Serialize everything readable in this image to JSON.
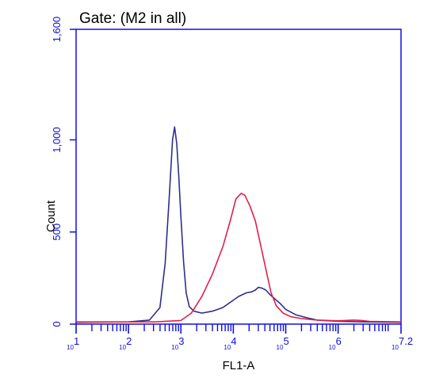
{
  "chart_data": {
    "type": "line",
    "title": "Gate: (M2 in all)",
    "xlabel": "FL1-A",
    "ylabel": "Count",
    "x_scale": "log10",
    "xlim": [
      1,
      7.2
    ],
    "ylim": [
      0,
      1600
    ],
    "x_ticks": [
      {
        "value": 1,
        "base": "10",
        "exp": "1"
      },
      {
        "value": 2,
        "base": "10",
        "exp": "2"
      },
      {
        "value": 3,
        "base": "10",
        "exp": "3"
      },
      {
        "value": 4,
        "base": "10",
        "exp": "4"
      },
      {
        "value": 5,
        "base": "10",
        "exp": "5"
      },
      {
        "value": 6,
        "base": "10",
        "exp": "6"
      },
      {
        "value": 7.2,
        "base": "10",
        "exp": "7.2"
      }
    ],
    "y_ticks": [
      {
        "value": 0,
        "label": "0"
      },
      {
        "value": 500,
        "label": "500"
      },
      {
        "value": 1000,
        "label": "1,000"
      },
      {
        "value": 1600,
        "label": "1,600"
      }
    ],
    "grid": false,
    "legend": "none",
    "series": [
      {
        "color": "#2e2e8f",
        "points": [
          [
            1.0,
            10
          ],
          [
            2.0,
            12
          ],
          [
            2.4,
            22
          ],
          [
            2.6,
            90
          ],
          [
            2.7,
            330
          ],
          [
            2.78,
            700
          ],
          [
            2.84,
            1000
          ],
          [
            2.88,
            1070
          ],
          [
            2.92,
            980
          ],
          [
            2.96,
            800
          ],
          [
            3.0,
            580
          ],
          [
            3.05,
            340
          ],
          [
            3.1,
            170
          ],
          [
            3.16,
            95
          ],
          [
            3.25,
            70
          ],
          [
            3.4,
            60
          ],
          [
            3.6,
            70
          ],
          [
            3.8,
            90
          ],
          [
            3.95,
            120
          ],
          [
            4.1,
            150
          ],
          [
            4.25,
            170
          ],
          [
            4.35,
            175
          ],
          [
            4.42,
            185
          ],
          [
            4.48,
            200
          ],
          [
            4.55,
            195
          ],
          [
            4.62,
            185
          ],
          [
            4.7,
            160
          ],
          [
            4.8,
            135
          ],
          [
            4.9,
            110
          ],
          [
            5.0,
            80
          ],
          [
            5.2,
            50
          ],
          [
            5.4,
            35
          ],
          [
            5.6,
            22
          ],
          [
            6.0,
            15
          ],
          [
            6.5,
            12
          ],
          [
            7.2,
            10
          ]
        ]
      },
      {
        "color": "#e0204a",
        "points": [
          [
            1.0,
            12
          ],
          [
            2.5,
            12
          ],
          [
            3.0,
            20
          ],
          [
            3.2,
            60
          ],
          [
            3.4,
            150
          ],
          [
            3.6,
            270
          ],
          [
            3.8,
            420
          ],
          [
            3.95,
            570
          ],
          [
            4.05,
            680
          ],
          [
            4.15,
            710
          ],
          [
            4.22,
            700
          ],
          [
            4.32,
            640
          ],
          [
            4.42,
            560
          ],
          [
            4.52,
            430
          ],
          [
            4.62,
            300
          ],
          [
            4.72,
            170
          ],
          [
            4.82,
            100
          ],
          [
            4.95,
            60
          ],
          [
            5.1,
            40
          ],
          [
            5.3,
            30
          ],
          [
            5.6,
            22
          ],
          [
            6.0,
            18
          ],
          [
            6.3,
            22
          ],
          [
            6.45,
            20
          ],
          [
            6.6,
            15
          ],
          [
            7.2,
            12
          ]
        ]
      }
    ]
  }
}
